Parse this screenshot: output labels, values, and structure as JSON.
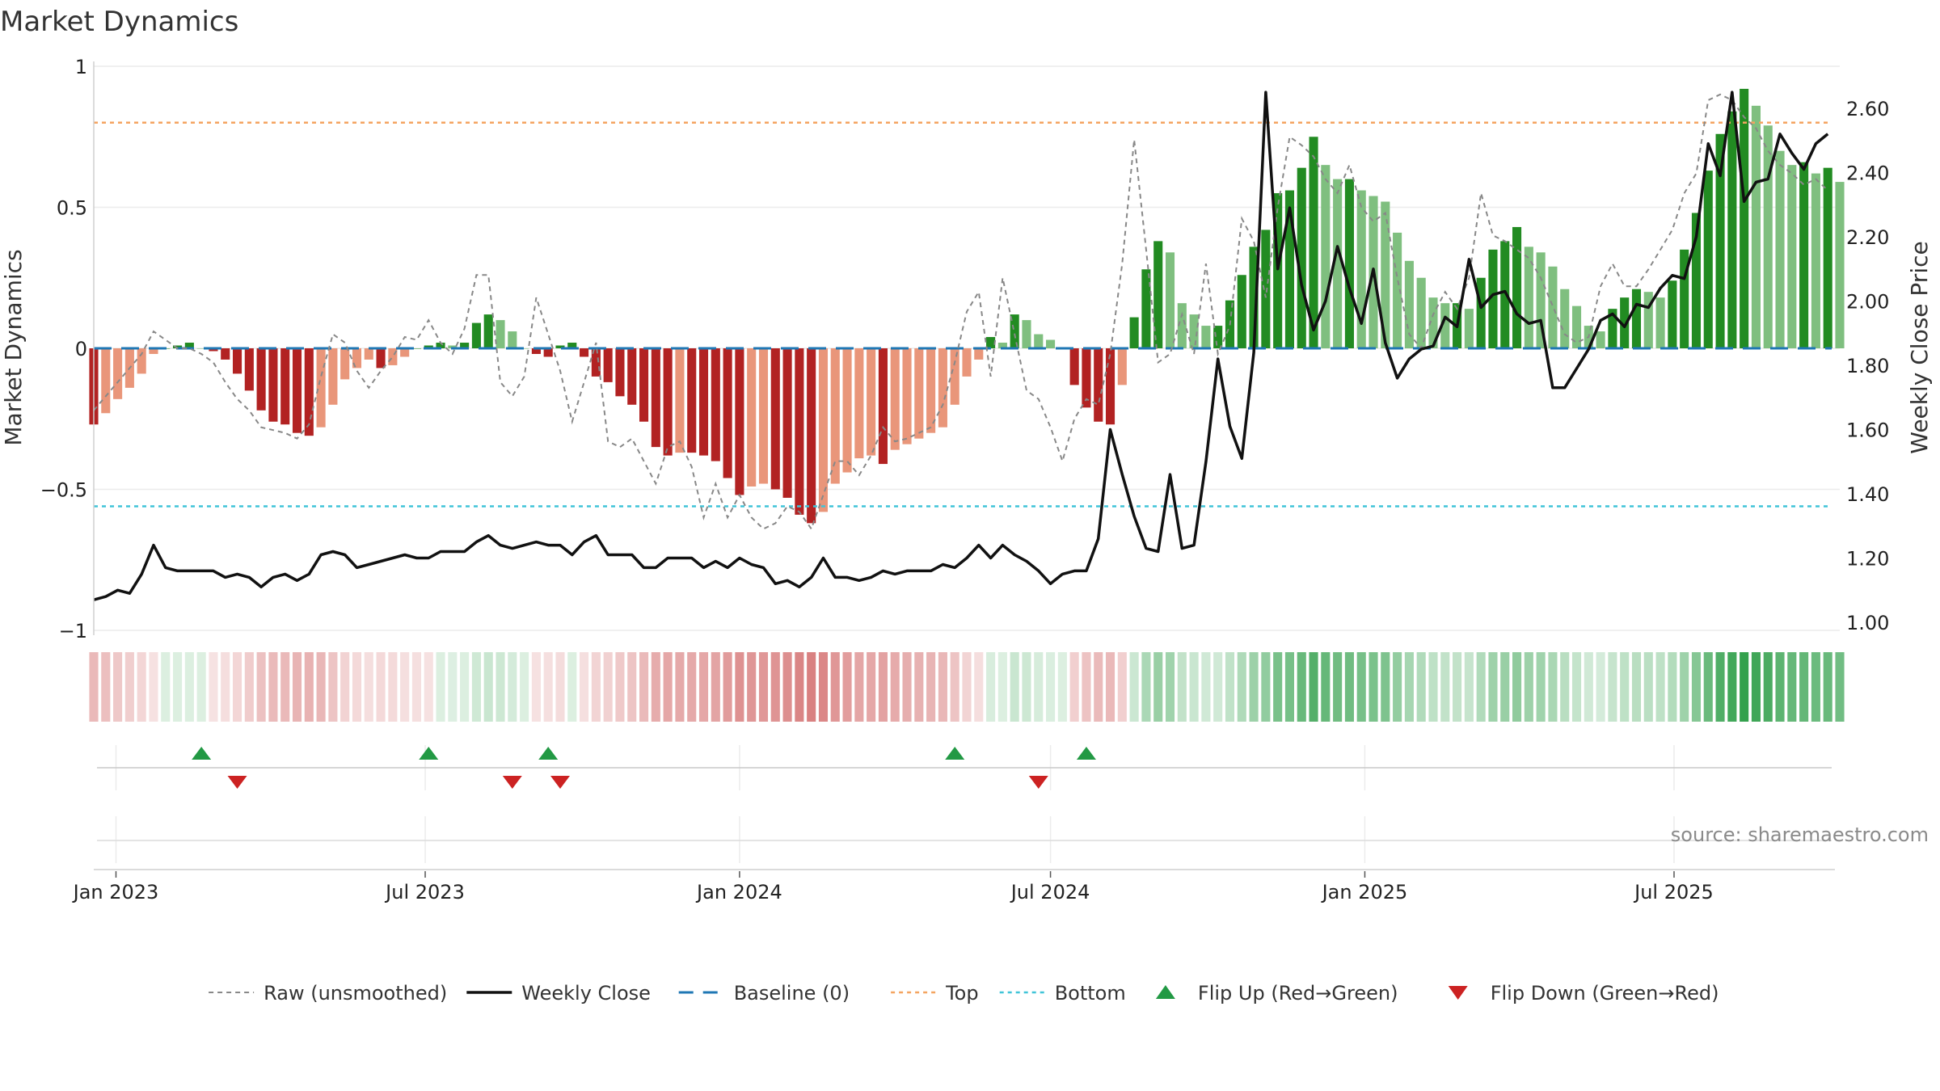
{
  "chart_data": {
    "type": "bar",
    "title": "Market Dynamics",
    "ylabel": "Market Dynamics",
    "y2label": "Weekly Close Price",
    "ylim": [
      -1,
      1
    ],
    "y2lim": [
      1.0,
      2.6
    ],
    "xlim": [
      "2022-12-19",
      "2025-10-06"
    ],
    "yticks": [
      "1",
      "0.5",
      "0",
      "−0.5",
      "−1"
    ],
    "y2ticks": [
      "2.60",
      "2.40",
      "2.20",
      "2.00",
      "1.80",
      "1.60",
      "1.40",
      "1.20",
      "1.00"
    ],
    "xticks": [
      {
        "date": "2023-01-01",
        "label": "Jan 2023"
      },
      {
        "date": "2023-07-01",
        "label": "Jul 2023"
      },
      {
        "date": "2024-01-01",
        "label": "Jan 2024"
      },
      {
        "date": "2024-07-01",
        "label": "Jul 2024"
      },
      {
        "date": "2025-01-01",
        "label": "Jan 2025"
      },
      {
        "date": "2025-07-01",
        "label": "Jul 2025"
      }
    ],
    "start_date": "2022-12-19",
    "top": 0.8,
    "bottom": -0.56,
    "baseline": 0,
    "bar_values": [
      -0.27,
      -0.23,
      -0.18,
      -0.14,
      -0.09,
      -0.02,
      0,
      0.01,
      0.02,
      0,
      -0.01,
      -0.04,
      -0.09,
      -0.15,
      -0.22,
      -0.26,
      -0.27,
      -0.3,
      -0.31,
      -0.28,
      -0.2,
      -0.11,
      -0.07,
      -0.04,
      -0.07,
      -0.06,
      -0.03,
      0,
      0.01,
      0.02,
      0.01,
      0.02,
      0.09,
      0.12,
      0.1,
      0.06,
      0,
      -0.02,
      -0.03,
      0.01,
      0.02,
      -0.03,
      -0.1,
      -0.12,
      -0.17,
      -0.2,
      -0.26,
      -0.35,
      -0.38,
      -0.37,
      -0.37,
      -0.38,
      -0.4,
      -0.46,
      -0.52,
      -0.49,
      -0.48,
      -0.5,
      -0.53,
      -0.59,
      -0.62,
      -0.58,
      -0.48,
      -0.44,
      -0.39,
      -0.38,
      -0.41,
      -0.36,
      -0.34,
      -0.32,
      -0.3,
      -0.28,
      -0.2,
      -0.1,
      -0.04,
      0.04,
      0.02,
      0.12,
      0.1,
      0.05,
      0.03,
      0,
      -0.13,
      -0.21,
      -0.26,
      -0.27,
      -0.13,
      0.11,
      0.28,
      0.38,
      0.34,
      0.16,
      0.12,
      0.08,
      0.08,
      0.17,
      0.26,
      0.36,
      0.42,
      0.55,
      0.56,
      0.64,
      0.75,
      0.65,
      0.6,
      0.6,
      0.56,
      0.54,
      0.52,
      0.41,
      0.31,
      0.25,
      0.18,
      0.16,
      0.16,
      0.14,
      0.25,
      0.35,
      0.38,
      0.43,
      0.36,
      0.34,
      0.29,
      0.21,
      0.15,
      0.08,
      0.06,
      0.14,
      0.18,
      0.21,
      0.2,
      0.18,
      0.24,
      0.35,
      0.48,
      0.63,
      0.76,
      0.84,
      0.92,
      0.86,
      0.79,
      0.7,
      0.65,
      0.66,
      0.62,
      0.64,
      0.59
    ],
    "raw_values": [
      -0.22,
      -0.17,
      -0.12,
      -0.07,
      -0.02,
      0.06,
      0.03,
      0.0,
      0.0,
      -0.02,
      -0.05,
      -0.12,
      -0.18,
      -0.22,
      -0.28,
      -0.29,
      -0.3,
      -0.32,
      -0.27,
      -0.1,
      0.05,
      0.02,
      -0.08,
      -0.14,
      -0.08,
      -0.03,
      0.04,
      0.03,
      0.1,
      0.02,
      -0.02,
      0.07,
      0.26,
      0.26,
      -0.12,
      -0.17,
      -0.1,
      0.18,
      0.05,
      -0.08,
      -0.26,
      -0.12,
      0.02,
      -0.33,
      -0.35,
      -0.32,
      -0.4,
      -0.48,
      -0.35,
      -0.33,
      -0.42,
      -0.6,
      -0.48,
      -0.6,
      -0.52,
      -0.6,
      -0.64,
      -0.62,
      -0.56,
      -0.58,
      -0.64,
      -0.52,
      -0.4,
      -0.4,
      -0.45,
      -0.38,
      -0.28,
      -0.33,
      -0.32,
      -0.3,
      -0.28,
      -0.2,
      -0.05,
      0.13,
      0.2,
      -0.1,
      0.25,
      0.05,
      -0.15,
      -0.18,
      -0.28,
      -0.4,
      -0.25,
      -0.18,
      -0.2,
      -0.02,
      0.3,
      0.74,
      0.35,
      -0.05,
      -0.02,
      0.12,
      -0.02,
      0.3,
      -0.02,
      0.08,
      0.46,
      0.38,
      0.18,
      0.5,
      0.75,
      0.72,
      0.68,
      0.6,
      0.55,
      0.65,
      0.5,
      0.45,
      0.48,
      0.25,
      0.05,
      0.0,
      0.12,
      0.2,
      0.14,
      0.25,
      0.55,
      0.4,
      0.38,
      0.35,
      0.32,
      0.25,
      0.15,
      0.05,
      0.02,
      0.04,
      0.22,
      0.3,
      0.22,
      0.22,
      0.28,
      0.35,
      0.42,
      0.55,
      0.62,
      0.88,
      0.9,
      0.88,
      0.82,
      0.78,
      0.7,
      0.65,
      0.62,
      0.58,
      0.6,
      0.56
    ],
    "close_values": [
      1.07,
      1.08,
      1.1,
      1.09,
      1.15,
      1.24,
      1.17,
      1.16,
      1.16,
      1.16,
      1.16,
      1.14,
      1.15,
      1.14,
      1.11,
      1.14,
      1.15,
      1.13,
      1.15,
      1.21,
      1.22,
      1.21,
      1.17,
      1.18,
      1.19,
      1.2,
      1.21,
      1.2,
      1.2,
      1.22,
      1.22,
      1.22,
      1.25,
      1.27,
      1.24,
      1.23,
      1.24,
      1.25,
      1.24,
      1.24,
      1.21,
      1.25,
      1.27,
      1.21,
      1.21,
      1.21,
      1.17,
      1.17,
      1.2,
      1.2,
      1.2,
      1.17,
      1.19,
      1.17,
      1.2,
      1.18,
      1.17,
      1.12,
      1.13,
      1.11,
      1.14,
      1.2,
      1.14,
      1.14,
      1.13,
      1.14,
      1.16,
      1.15,
      1.16,
      1.16,
      1.16,
      1.18,
      1.17,
      1.2,
      1.24,
      1.2,
      1.24,
      1.21,
      1.19,
      1.16,
      1.12,
      1.15,
      1.16,
      1.16,
      1.26,
      1.6,
      1.46,
      1.33,
      1.23,
      1.22,
      1.46,
      1.23,
      1.24,
      1.5,
      1.82,
      1.61,
      1.51,
      1.84,
      2.65,
      2.1,
      2.29,
      2.05,
      1.91,
      2.0,
      2.17,
      2.04,
      1.93,
      2.1,
      1.87,
      1.76,
      1.82,
      1.85,
      1.86,
      1.95,
      1.92,
      2.13,
      1.98,
      2.02,
      2.03,
      1.96,
      1.93,
      1.94,
      1.73,
      1.73,
      1.79,
      1.85,
      1.94,
      1.96,
      1.92,
      1.99,
      1.98,
      2.04,
      2.08,
      2.07,
      2.2,
      2.49,
      2.39,
      2.65,
      2.31,
      2.37,
      2.38,
      2.52,
      2.46,
      2.41,
      2.49,
      2.52
    ],
    "ribbon_values": [
      -0.27,
      -0.23,
      -0.18,
      -0.14,
      -0.09,
      -0.02,
      0.02,
      0.02,
      0.02,
      0.02,
      -0.01,
      -0.04,
      -0.09,
      -0.15,
      -0.22,
      -0.26,
      -0.27,
      -0.3,
      -0.31,
      -0.28,
      -0.2,
      -0.11,
      -0.07,
      -0.04,
      -0.07,
      -0.06,
      -0.03,
      -0.03,
      -0.02,
      0.02,
      0.01,
      0.02,
      0.09,
      0.12,
      0.1,
      0.06,
      0.02,
      -0.02,
      -0.03,
      -0.05,
      0.02,
      -0.03,
      -0.1,
      -0.12,
      -0.17,
      -0.2,
      -0.26,
      -0.35,
      -0.38,
      -0.37,
      -0.37,
      -0.38,
      -0.4,
      -0.46,
      -0.52,
      -0.49,
      -0.48,
      -0.5,
      -0.53,
      -0.59,
      -0.62,
      -0.58,
      -0.48,
      -0.44,
      -0.39,
      -0.38,
      -0.41,
      -0.36,
      -0.34,
      -0.32,
      -0.3,
      -0.28,
      -0.2,
      -0.1,
      -0.04,
      0.04,
      0.02,
      0.12,
      0.1,
      0.05,
      0.03,
      0.02,
      -0.13,
      -0.21,
      -0.26,
      -0.27,
      -0.13,
      0.11,
      0.28,
      0.38,
      0.34,
      0.16,
      0.12,
      0.08,
      0.08,
      0.17,
      0.26,
      0.36,
      0.42,
      0.55,
      0.56,
      0.64,
      0.75,
      0.65,
      0.6,
      0.6,
      0.56,
      0.54,
      0.52,
      0.41,
      0.31,
      0.25,
      0.18,
      0.16,
      0.16,
      0.14,
      0.25,
      0.35,
      0.38,
      0.43,
      0.36,
      0.34,
      0.29,
      0.21,
      0.15,
      0.08,
      0.06,
      0.14,
      0.18,
      0.21,
      0.2,
      0.18,
      0.24,
      0.35,
      0.48,
      0.63,
      0.76,
      0.84,
      0.92,
      0.86,
      0.79,
      0.7,
      0.65,
      0.66,
      0.62,
      0.64,
      0.59
    ],
    "flip_up_dates": [
      "2023-02-20",
      "2023-07-03",
      "2023-09-11",
      "2024-05-06",
      "2024-07-22"
    ],
    "flip_down_dates": [
      "2023-03-13",
      "2023-08-21",
      "2023-09-18",
      "2024-06-24"
    ],
    "legend": [
      {
        "label": "Raw (unsmoothed)",
        "style": "dashed-gray"
      },
      {
        "label": "Weekly Close",
        "style": "solid-black"
      },
      {
        "label": "Baseline (0)",
        "style": "dashed-blue"
      },
      {
        "label": "Top",
        "style": "dotted-orange"
      },
      {
        "label": "Bottom",
        "style": "dotted-cyan"
      },
      {
        "label": "Flip Up (Red→Green)",
        "style": "triangle-up-green"
      },
      {
        "label": "Flip Down (Green→Red)",
        "style": "triangle-down-red"
      }
    ],
    "legend_position": "bottom-center",
    "grid": true,
    "source": "source: sharemaestro.com",
    "colors": {
      "bar_pos_strong": "#228b22",
      "bar_pos_weak": "#7fbf7f",
      "bar_neg_strong": "#b22222",
      "bar_neg_weak": "#e9967a",
      "close": "#111111",
      "raw": "#888888",
      "baseline": "#1f77b4",
      "top": "#f4a460",
      "bottom": "#40c4d8",
      "flip_up": "#229944",
      "flip_down": "#cc2222",
      "ribbon_pos": "#2e9e48",
      "ribbon_neg": "#c94c4c"
    }
  }
}
